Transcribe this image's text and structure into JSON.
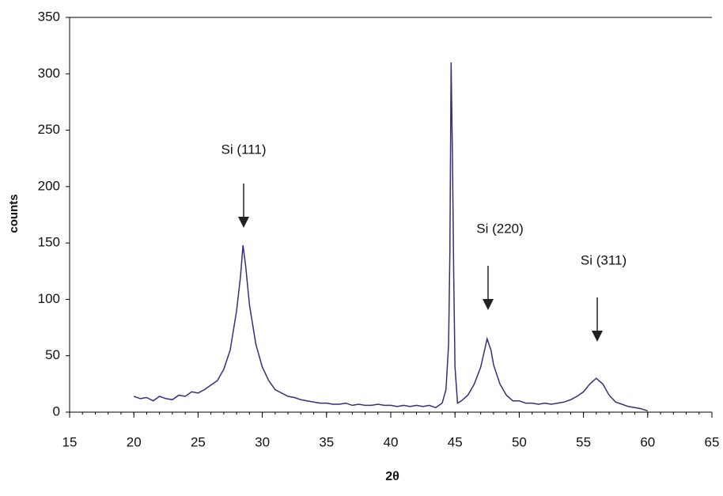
{
  "chart_data": {
    "type": "line",
    "xlabel": "2θ",
    "ylabel": "counts",
    "x": [
      20,
      20.5,
      21,
      21.5,
      22,
      22.5,
      23,
      23.5,
      24,
      24.5,
      25,
      25.5,
      26,
      26.5,
      27,
      27.5,
      28,
      28.3,
      28.5,
      28.7,
      29,
      29.5,
      30,
      30.5,
      31,
      31.5,
      32,
      32.5,
      33,
      33.5,
      34,
      34.5,
      35,
      35.5,
      36,
      36.5,
      37,
      37.5,
      38,
      38.5,
      39,
      39.5,
      40,
      40.5,
      41,
      41.5,
      42,
      42.5,
      43,
      43.5,
      44,
      44.3,
      44.5,
      44.6,
      44.7,
      44.8,
      44.9,
      45,
      45.2,
      45.5,
      46,
      46.5,
      47,
      47.3,
      47.5,
      47.8,
      48,
      48.5,
      49,
      49.5,
      50,
      50.5,
      51,
      51.5,
      52,
      52.5,
      53,
      53.5,
      54,
      54.5,
      55,
      55.5,
      56,
      56.5,
      57,
      57.5,
      58,
      58.5,
      59,
      59.5,
      60
    ],
    "series": [
      {
        "name": "counts",
        "color": "#3b2c7a",
        "values": [
          14,
          12,
          13,
          10,
          14,
          12,
          11,
          15,
          14,
          18,
          17,
          20,
          24,
          28,
          38,
          55,
          90,
          120,
          148,
          130,
          95,
          60,
          40,
          28,
          20,
          17,
          14,
          13,
          11,
          10,
          9,
          8,
          8,
          7,
          7,
          8,
          6,
          7,
          6,
          6,
          7,
          6,
          6,
          5,
          6,
          5,
          6,
          5,
          6,
          4,
          8,
          20,
          60,
          140,
          310,
          225,
          120,
          40,
          8,
          10,
          15,
          25,
          40,
          55,
          65,
          55,
          42,
          25,
          15,
          10,
          10,
          8,
          8,
          7,
          8,
          7,
          8,
          9,
          11,
          14,
          18,
          25,
          30,
          25,
          15,
          9,
          7,
          5,
          4,
          3,
          1
        ]
      }
    ],
    "xlim": [
      15,
      65
    ],
    "xticks": [
      15,
      20,
      25,
      30,
      35,
      40,
      45,
      50,
      55,
      60,
      65
    ],
    "ylim": [
      0,
      350
    ],
    "yticks": [
      0,
      50,
      100,
      150,
      200,
      250,
      300,
      350
    ],
    "annotations": [
      "Si (111)",
      "Si (220)",
      "Si (311)"
    ]
  }
}
